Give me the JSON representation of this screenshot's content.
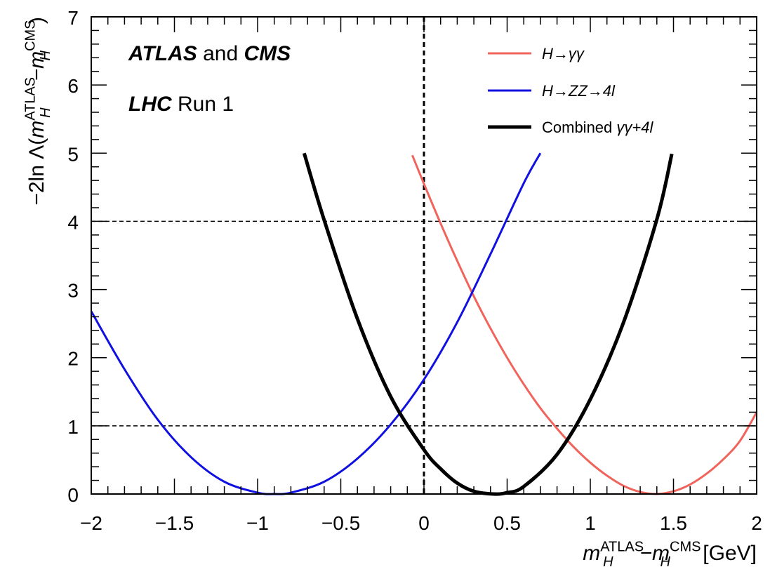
{
  "chart_data": {
    "type": "line",
    "xlabel": {
      "parts": [
        {
          "text": "m",
          "style": "italic"
        },
        {
          "text": "ATLAS",
          "style": "sup"
        },
        {
          "text": "H",
          "style": "sub-italic"
        },
        {
          "text": "−m",
          "style": "italic"
        },
        {
          "text": "CMS",
          "style": "sup"
        },
        {
          "text": "H",
          "style": "sub-italic"
        },
        {
          "text": " [GeV]",
          "style": "normal"
        }
      ]
    },
    "ylabel": {
      "parts": [
        {
          "text": "−2ln Λ(",
          "style": "normal"
        },
        {
          "text": "m",
          "style": "italic"
        },
        {
          "text": "ATLAS",
          "style": "sup"
        },
        {
          "text": "H",
          "style": "sub-italic"
        },
        {
          "text": "−m",
          "style": "italic"
        },
        {
          "text": "CMS",
          "style": "sup"
        },
        {
          "text": "H",
          "style": "sub-italic"
        },
        {
          "text": ")",
          "style": "normal"
        }
      ]
    },
    "xlim": [
      -2,
      2
    ],
    "ylim": [
      0,
      7
    ],
    "x_ticks": [
      {
        "value": -2,
        "label": "−2"
      },
      {
        "value": -1.5,
        "label": "−1.5"
      },
      {
        "value": -1,
        "label": "−1"
      },
      {
        "value": -0.5,
        "label": "−0.5"
      },
      {
        "value": 0,
        "label": "0"
      },
      {
        "value": 0.5,
        "label": "0.5"
      },
      {
        "value": 1,
        "label": "1"
      },
      {
        "value": 1.5,
        "label": "1.5"
      },
      {
        "value": 2,
        "label": "2"
      }
    ],
    "y_ticks": [
      {
        "value": 0,
        "label": "0"
      },
      {
        "value": 1,
        "label": "1"
      },
      {
        "value": 2,
        "label": "2"
      },
      {
        "value": 3,
        "label": "3"
      },
      {
        "value": 4,
        "label": "4"
      },
      {
        "value": 5,
        "label": "5"
      },
      {
        "value": 6,
        "label": "6"
      },
      {
        "value": 7,
        "label": "7"
      }
    ],
    "reference_lines": [
      {
        "orientation": "horizontal",
        "value": 1,
        "style": "dashed"
      },
      {
        "orientation": "horizontal",
        "value": 4,
        "style": "dashed"
      },
      {
        "orientation": "vertical",
        "value": 0,
        "style": "dashed-bold"
      }
    ],
    "annotations": [
      {
        "parts": [
          {
            "text": "ATLAS",
            "style": "bold-italic"
          },
          {
            "text": " and ",
            "style": "normal"
          },
          {
            "text": "CMS",
            "style": "bold-italic"
          }
        ]
      },
      {
        "parts": [
          {
            "text": "LHC",
            "style": "bold-italic"
          },
          {
            "text": " Run 1",
            "style": "normal"
          }
        ]
      }
    ],
    "legend_placement": "top-right",
    "series": [
      {
        "name": "H→γγ",
        "color": "#f0645c",
        "line_width": 3,
        "x": [
          -0.07,
          0.0,
          0.1,
          0.2,
          0.3,
          0.4,
          0.5,
          0.6,
          0.7,
          0.8,
          0.9,
          1.0,
          1.1,
          1.2,
          1.3,
          1.4,
          1.5,
          1.6,
          1.7,
          1.8,
          1.9,
          2.0
        ],
        "y": [
          4.97,
          4.55,
          3.97,
          3.42,
          2.9,
          2.43,
          2.0,
          1.61,
          1.26,
          0.96,
          0.69,
          0.46,
          0.27,
          0.12,
          0.03,
          0.0,
          0.04,
          0.14,
          0.3,
          0.51,
          0.78,
          1.2
        ]
      },
      {
        "name": "H→ZZ→4l",
        "color": "#1010e0",
        "line_width": 3,
        "x": [
          -2.0,
          -1.8,
          -1.6,
          -1.4,
          -1.2,
          -1.0,
          -0.9,
          -0.8,
          -0.6,
          -0.4,
          -0.2,
          0.0,
          0.2,
          0.4,
          0.6,
          0.7
        ],
        "y": [
          2.68,
          1.83,
          1.09,
          0.54,
          0.18,
          0.02,
          0.0,
          0.02,
          0.18,
          0.52,
          1.02,
          1.68,
          2.52,
          3.52,
          4.56,
          5.0
        ]
      },
      {
        "name": "Combined γγ+4l",
        "color": "#000000",
        "line_width": 5,
        "x": [
          -0.72,
          -0.6,
          -0.4,
          -0.2,
          0.0,
          0.1,
          0.2,
          0.3,
          0.42,
          0.5,
          0.6,
          0.8,
          1.0,
          1.2,
          1.4,
          1.49
        ],
        "y": [
          5.0,
          4.02,
          2.57,
          1.43,
          0.65,
          0.37,
          0.16,
          0.04,
          0.0,
          0.02,
          0.11,
          0.58,
          1.39,
          2.52,
          4.03,
          4.99
        ]
      }
    ]
  }
}
